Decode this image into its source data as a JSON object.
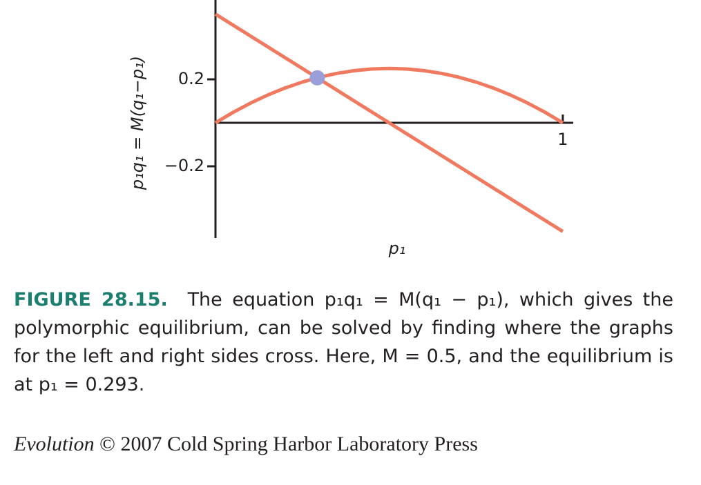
{
  "chart_data": {
    "type": "line",
    "ylabel": "p₁q₁ = M(q₁−p₁)",
    "xlabel": "p₁",
    "xlim": [
      0,
      1.03
    ],
    "ylim": [
      -0.53,
      0.565
    ],
    "xticks": [
      1
    ],
    "yticks": [
      0.2,
      {
        "value": -0.2,
        "label": "−0.2"
      }
    ],
    "series": [
      {
        "color": "#ef7a5f",
        "x": [
          0,
          1
        ],
        "values": [
          0.5,
          -0.5
        ]
      },
      {
        "color": "#ef7a5f",
        "x": [
          0,
          0.05,
          0.1,
          0.15,
          0.2,
          0.25,
          0.3,
          0.35,
          0.4,
          0.45,
          0.5,
          0.55,
          0.6,
          0.65,
          0.7,
          0.75,
          0.8,
          0.85,
          0.9,
          0.95,
          1
        ],
        "values": [
          0,
          0.0475,
          0.09,
          0.1275,
          0.16,
          0.1875,
          0.21,
          0.2275,
          0.24,
          0.2475,
          0.25,
          0.2475,
          0.24,
          0.2275,
          0.21,
          0.1875,
          0.16,
          0.1275,
          0.09,
          0.0475,
          0
        ]
      }
    ],
    "point": {
      "x": 0.293,
      "y": 0.207,
      "color": "#9b9fd9"
    }
  },
  "caption": {
    "label": "FIGURE 28.15.",
    "text": "The equation p₁q₁ = M(q₁ − p₁), which gives the polymorphic equilibrium, can be solved by finding where the graphs for the left and right sides cross. Here, M = 0.5, and the equilibrium is at p₁ = 0.293."
  },
  "credit": {
    "title": "Evolution",
    "text": "© 2007 Cold Spring Harbor Laboratory Press"
  }
}
